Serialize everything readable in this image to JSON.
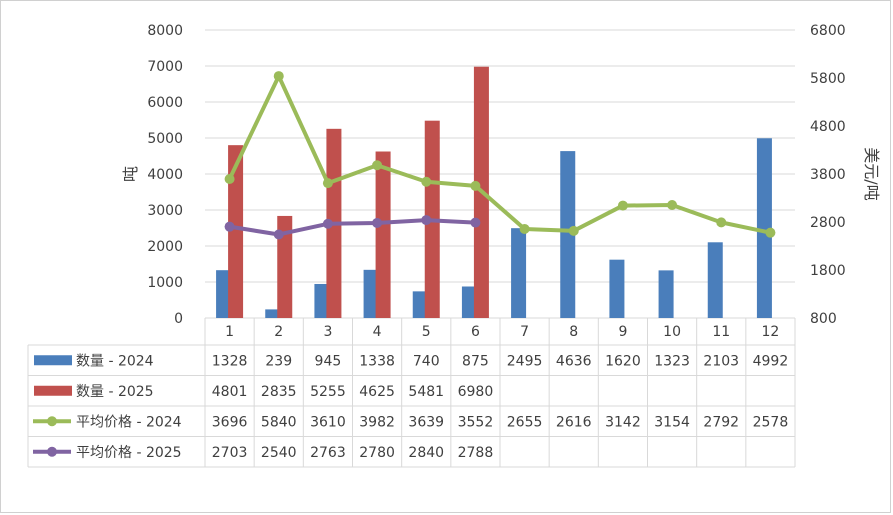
{
  "chart_data": {
    "type": "bar",
    "categories": [
      "1",
      "2",
      "3",
      "4",
      "5",
      "6",
      "7",
      "8",
      "9",
      "10",
      "11",
      "12"
    ],
    "ylabel_left": "吨",
    "ylabel_right": "美元/吨",
    "ylim_left": [
      0,
      8000
    ],
    "ylim_right": [
      800,
      6800
    ],
    "left_ticks": [
      "0",
      "1000",
      "2000",
      "3000",
      "4000",
      "5000",
      "6000",
      "7000",
      "8000"
    ],
    "right_ticks": [
      "800",
      "1800",
      "2800",
      "3800",
      "4800",
      "5800",
      "6800"
    ],
    "grid": true,
    "legend": "data-table-below",
    "series": [
      {
        "name": "数量 - 2024",
        "type": "bar",
        "axis": "left",
        "color": "#4a7ebb",
        "values": [
          1328,
          239,
          945,
          1338,
          740,
          875,
          2495,
          4636,
          1620,
          1323,
          2103,
          4992
        ]
      },
      {
        "name": "数量 - 2025",
        "type": "bar",
        "axis": "left",
        "color": "#c0504d",
        "values": [
          4801,
          2835,
          5255,
          4625,
          5481,
          6980,
          null,
          null,
          null,
          null,
          null,
          null
        ]
      },
      {
        "name": "平均价格 - 2024",
        "type": "line",
        "axis": "right",
        "color": "#9bbb59",
        "values": [
          3696,
          5840,
          3610,
          3982,
          3639,
          3552,
          2655,
          2616,
          3142,
          3154,
          2792,
          2578
        ]
      },
      {
        "name": "平均价格 - 2025",
        "type": "line",
        "axis": "right",
        "color": "#8064a2",
        "values": [
          2703,
          2540,
          2763,
          2780,
          2840,
          2788,
          null,
          null,
          null,
          null,
          null,
          null
        ]
      }
    ]
  }
}
